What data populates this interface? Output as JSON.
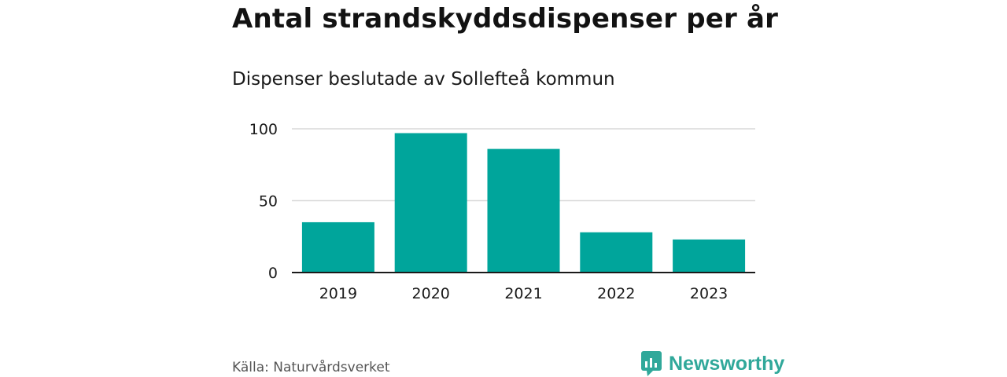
{
  "title": "Antal strandskyddsdispenser per år",
  "subtitle": "Dispenser beslutade av Sollefteå kommun",
  "source": "Källa: Naturvårdsverket",
  "brand": {
    "name": "Newsworthy",
    "icon": "bar-chart-logo-icon",
    "color": "#30a89a"
  },
  "colors": {
    "bar": "#00a59b",
    "grid": "#d9d9d9",
    "axis": "#1a1a1a",
    "tick_text": "#1a1a1a"
  },
  "chart_data": {
    "type": "bar",
    "title": "Antal strandskyddsdispenser per år",
    "subtitle": "Dispenser beslutade av Sollefteå kommun",
    "categories": [
      "2019",
      "2020",
      "2021",
      "2022",
      "2023"
    ],
    "values": [
      35,
      97,
      86,
      28,
      23
    ],
    "xlabel": "",
    "ylabel": "",
    "ylim": [
      0,
      100
    ],
    "yticks": [
      "0",
      "50",
      "100"
    ],
    "ytick_values": [
      0,
      50,
      100
    ],
    "grid": true
  }
}
